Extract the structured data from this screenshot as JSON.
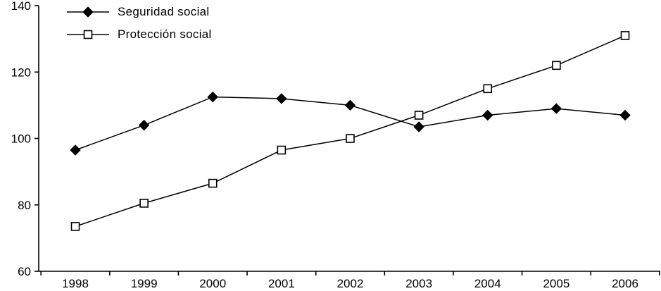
{
  "chart_data": {
    "type": "line",
    "title": "",
    "xlabel": "",
    "ylabel": "",
    "x_categories": [
      "1998",
      "1999",
      "2000",
      "2001",
      "2002",
      "2003",
      "2004",
      "2005",
      "2006"
    ],
    "series": [
      {
        "name": "Seguridad social",
        "marker": "diamond-filled",
        "color": "#000000",
        "values": [
          96.5,
          104,
          112.5,
          112,
          110,
          103.5,
          107,
          109,
          107
        ]
      },
      {
        "name": "Protección social",
        "marker": "square-open",
        "color": "#000000",
        "values": [
          73.5,
          80.5,
          86.5,
          96.5,
          100,
          107,
          115,
          122,
          131
        ]
      }
    ],
    "ylim": [
      60,
      140
    ],
    "yticks": [
      60,
      80,
      100,
      120,
      140
    ],
    "grid": false,
    "legend_position": "top-left",
    "line_color": "#000000",
    "background": "#ffffff"
  }
}
